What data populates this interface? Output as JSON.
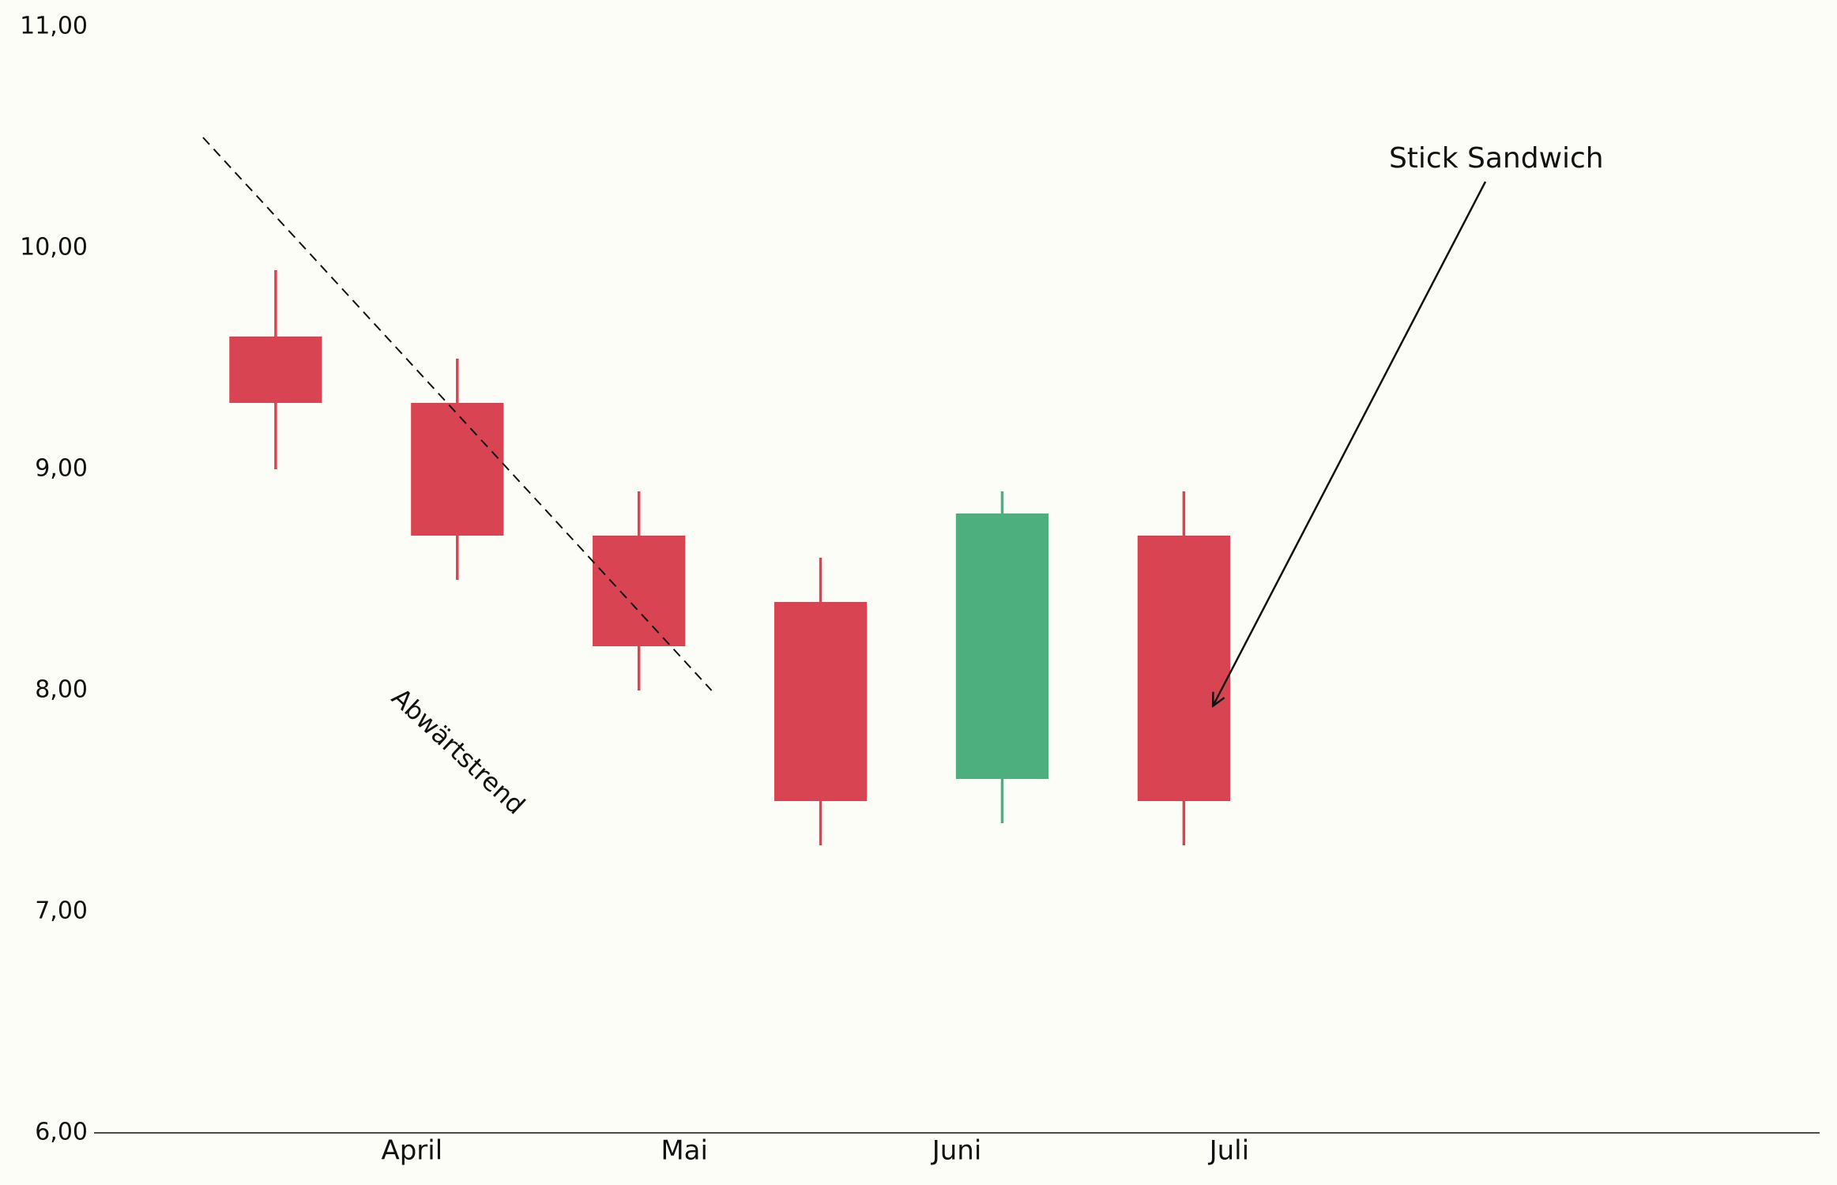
{
  "chart_data": {
    "type": "candlestick",
    "categories": [
      null,
      null,
      null,
      null,
      null,
      null
    ],
    "open": [
      9.6,
      9.3,
      8.7,
      8.4,
      7.6,
      8.7
    ],
    "high": [
      9.9,
      9.5,
      8.9,
      8.6,
      8.9,
      8.9
    ],
    "low": [
      9.0,
      8.5,
      8.0,
      7.3,
      7.4,
      7.3
    ],
    "close": [
      9.3,
      8.7,
      8.2,
      7.5,
      8.8,
      7.5
    ],
    "up_color": "#4caf7d",
    "down_color": "#d94452",
    "xlim": [
      -1,
      8.5
    ],
    "xticks": [
      {
        "value": 0.75,
        "label": "April"
      },
      {
        "value": 2.25,
        "label": "Mai"
      },
      {
        "value": 3.75,
        "label": "Juni"
      },
      {
        "value": 5.25,
        "label": "Juli"
      }
    ],
    "ylim": [
      6,
      11
    ],
    "yticks": [
      {
        "value": 6,
        "label": "6,00"
      },
      {
        "value": 7,
        "label": "7,00"
      },
      {
        "value": 8,
        "label": "8,00"
      },
      {
        "value": 9,
        "label": "9,00"
      },
      {
        "value": 10,
        "label": "10,00"
      },
      {
        "value": 11,
        "label": "11,00"
      }
    ],
    "trendline": {
      "x": [
        -0.4,
        2.4
      ],
      "y": [
        10.5,
        8.0
      ]
    },
    "annotations": [
      "Abwärtstrend",
      "Stick Sandwich"
    ]
  }
}
